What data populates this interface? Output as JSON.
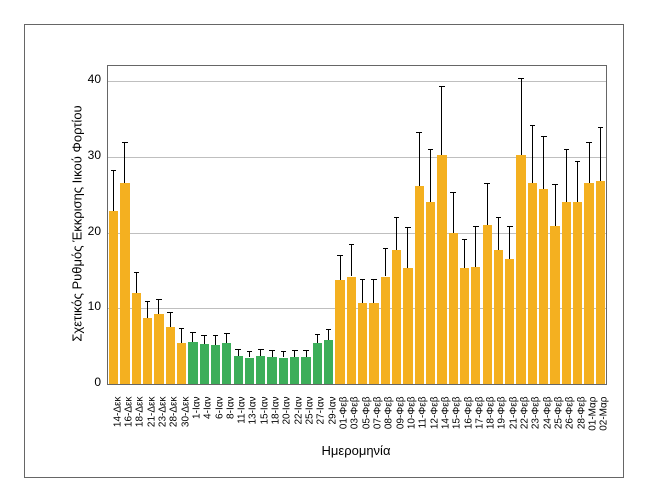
{
  "chart": {
    "type": "bar",
    "title": "",
    "xlabel": "Ημερομηνία",
    "ylabel": "Σχετικός Ρυθμός Έκκρισης Ιικού Φορτίου",
    "label_fontsize": 13,
    "tick_fontsize_x": 10,
    "tick_fontsize_y": 12,
    "background_color": "#ffffff",
    "grid_color": "#bfbfbf",
    "axis_color": "#666666",
    "error_bar_color": "#000000",
    "ylim": [
      0,
      42
    ],
    "yticks": [
      0,
      10,
      20,
      30,
      40
    ],
    "colors": {
      "orange": "#f4b020",
      "green": "#3cae5a"
    },
    "bar_width_ratio": 0.82,
    "categories": [
      "14-Δεκ",
      "16-Δεκ",
      "18-Δεκ",
      "21-Δεκ",
      "23-Δεκ",
      "28-Δεκ",
      "30-Δεκ",
      "1-Ιαν",
      "4-Ιαν",
      "6-Ιαν",
      "8-Ιαν",
      "11-Ιαν",
      "13-Ιαν",
      "15-Ιαν",
      "18-Ιαν",
      "20-Ιαν",
      "22-Ιαν",
      "25-Ιαν",
      "27-Ιαν",
      "29-Ιαν",
      "01-Φεβ",
      "03-Φεβ",
      "05-Φεβ",
      "07-Φεβ",
      "08-Φεβ",
      "09-Φεβ",
      "10-Φεβ",
      "11-Φεβ",
      "12-Φεβ",
      "14-Φεβ",
      "15-Φεβ",
      "16-Φεβ",
      "17-Φεβ",
      "18-Φεβ",
      "19-Φεβ",
      "21-Φεβ",
      "22-Φεβ",
      "23-Φεβ",
      "24-Φεβ",
      "25-Φεβ",
      "26-Φεβ",
      "28-Φεβ",
      "01-Μαρ",
      "02-Μαρ"
    ],
    "values": [
      22.8,
      26.5,
      12.0,
      8.7,
      9.2,
      7.5,
      5.4,
      5.6,
      5.3,
      5.2,
      5.4,
      3.7,
      3.5,
      3.7,
      3.6,
      3.5,
      3.6,
      3.6,
      5.4,
      5.8,
      13.8,
      14.2,
      10.7,
      10.7,
      14.2,
      17.7,
      15.3,
      26.2,
      24.0,
      30.2,
      19.9,
      15.3,
      15.4,
      21.0,
      17.7,
      16.5,
      30.2,
      26.5,
      25.7,
      20.9,
      24.0,
      24.0,
      26.5,
      26.8
    ],
    "errors": [
      5.5,
      5.5,
      2.8,
      2.3,
      2.0,
      2.0,
      2.0,
      1.3,
      1.2,
      1.3,
      1.3,
      0.9,
      0.9,
      0.9,
      0.9,
      0.9,
      0.9,
      0.9,
      1.2,
      1.4,
      3.2,
      4.3,
      3.2,
      3.2,
      3.8,
      4.3,
      5.5,
      7.1,
      7.1,
      9.1,
      5.5,
      3.8,
      5.5,
      5.5,
      4.3,
      4.4,
      10.2,
      7.7,
      7.1,
      5.5,
      7.1,
      5.5,
      5.5,
      7.1
    ],
    "bar_colors": [
      "orange",
      "orange",
      "orange",
      "orange",
      "orange",
      "orange",
      "orange",
      "green",
      "green",
      "green",
      "green",
      "green",
      "green",
      "green",
      "green",
      "green",
      "green",
      "green",
      "green",
      "green",
      "orange",
      "orange",
      "orange",
      "orange",
      "orange",
      "orange",
      "orange",
      "orange",
      "orange",
      "orange",
      "orange",
      "orange",
      "orange",
      "orange",
      "orange",
      "orange",
      "orange",
      "orange",
      "orange",
      "orange",
      "orange",
      "orange",
      "orange",
      "orange"
    ]
  }
}
